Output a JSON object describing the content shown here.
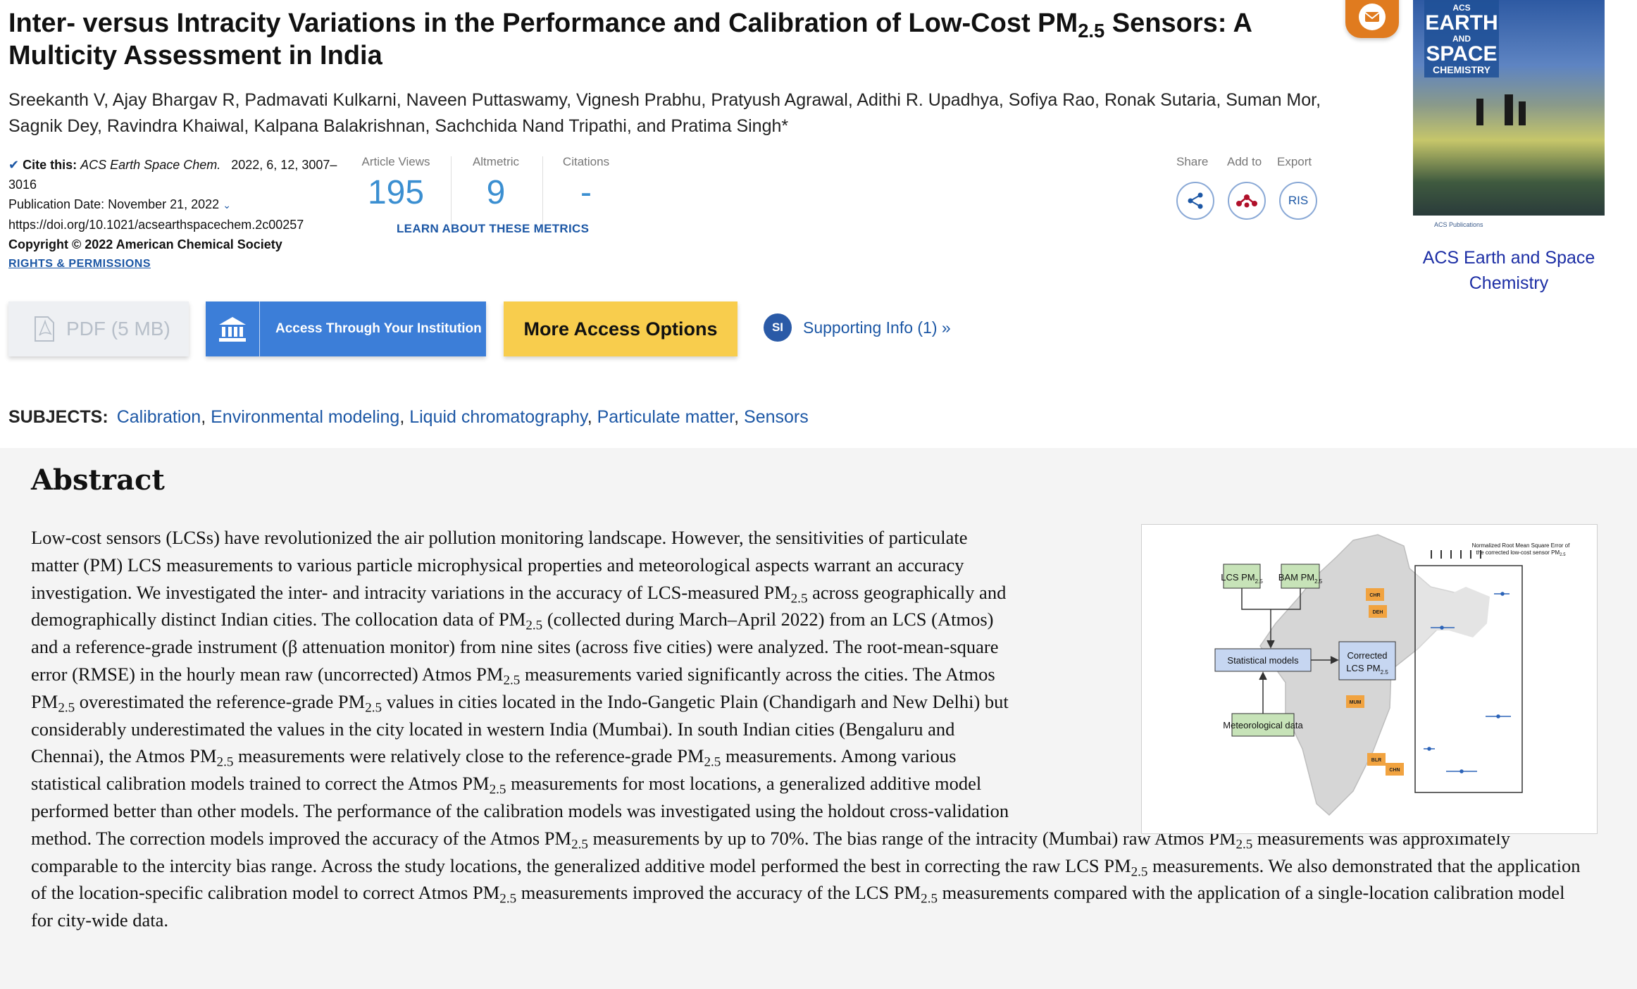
{
  "article": {
    "title_pre": "Inter- versus Intracity Variations in the Performance and Calibration of Low-Cost PM",
    "title_sub": "2.5",
    "title_post": " Sensors: A Multicity Assessment in India",
    "authors": "Sreekanth V, Ajay Bhargav R, Padmavati Kulkarni, Naveen Puttaswamy, Vignesh Prabhu, Pratyush Agrawal, Adithi R. Upadhya, Sofiya Rao, Ronak Sutaria, Suman Mor, Sagnik Dey, Ravindra Khaiwal, Kalpana Balakrishnan, Sachchida Nand Tripathi, and Pratima Singh*"
  },
  "citation": {
    "label": "Cite this:",
    "journal": "ACS Earth Space Chem.",
    "ref": "2022, 6, 12, 3007–3016",
    "pub_date": "Publication Date: November 21, 2022",
    "doi": "https://doi.org/10.1021/acsearthspacechem.2c00257",
    "copyright": "Copyright © 2022 American Chemical Society",
    "rights": "RIGHTS & PERMISSIONS"
  },
  "metrics": {
    "views_label": "Article Views",
    "views": "195",
    "altmetric_label": "Altmetric",
    "altmetric": "9",
    "citations_label": "Citations",
    "citations": "-",
    "learn": "LEARN ABOUT THESE METRICS"
  },
  "actions": {
    "share": "Share",
    "add_to": "Add to",
    "export": "Export",
    "ris": "RIS"
  },
  "buttons": {
    "pdf": "PDF (5 MB)",
    "institution": "Access Through Your Institution",
    "more": "More Access Options",
    "si_badge": "SI",
    "supporting": "Supporting Info (1) »"
  },
  "subjects": {
    "label": "SUBJECTS:",
    "items": [
      "Calibration",
      "Environmental modeling",
      "Liquid chromatography",
      "Particulate matter",
      "Sensors"
    ]
  },
  "journal": {
    "cover_acs": "ACS",
    "cover_earth": "EARTH",
    "cover_and": "AND",
    "cover_space": "SPACE",
    "cover_chem": "CHEMISTRY",
    "cover_pub": "ACS Publications",
    "name": "ACS Earth and Space Chemistry"
  },
  "abstract": {
    "heading": "Abstract",
    "pm": "PM",
    "sub": "2.5",
    "s1": "Low-cost sensors (LCSs) have revolutionized the air pollution monitoring landscape. However, the sensitivities of particulate matter (PM) LCS measurements to various particle microphysical properties and meteorological aspects warrant an accuracy investigation. We investigated the inter- and intracity variations in the accuracy of LCS-measured ",
    "s2": " across geographically and demographically distinct Indian cities. The collocation data of ",
    "s3": " (collected during March–April 2022) from an LCS (Atmos) and a reference-grade instrument (β attenuation monitor) from nine sites (across five cities) were analyzed. The root-mean-square error (RMSE) in the hourly mean raw (uncorrected) Atmos ",
    "s4": " measurements varied significantly across the cities. The Atmos ",
    "s5": " overestimated the reference-grade ",
    "s6": " values in cities located in the Indo-Gangetic Plain (Chandigarh and New Delhi) but considerably underestimated the values in the city located in western India (Mumbai). In south Indian cities (Bengaluru and Chennai), the Atmos ",
    "s7": " measurements were relatively close to the reference-grade ",
    "s8": " measurements. Among various statistical calibration models trained to correct the Atmos ",
    "s9": " measurements for most locations, a generalized additive model performed better than other models. The performance of the calibration models was investigated using the holdout cross-validation method. The correction models improved the accuracy of the Atmos ",
    "s10": " measurements by up to 70%. The bias range of the intracity (Mumbai) raw Atmos ",
    "s11": " measurements was approximately comparable to the intercity bias range. Across the study locations, the generalized additive model performed the best in correcting the raw LCS ",
    "s12": " measurements. We also demonstrated that the application of the location-specific calibration model to correct Atmos ",
    "s13": " measurements improved the accuracy of the LCS ",
    "s14": " measurements compared with the application of a single-location calibration model for city-wide data."
  },
  "toc": {
    "lcs": "LCS PM",
    "bam": "BAM PM",
    "sub": "2.5",
    "stat": "Statistical models",
    "met": "Meteorological data",
    "corr1": "Corrected",
    "corr2": "LCS PM",
    "plot_title1": "Normalized Root Mean Square Error of",
    "plot_title2": "the corrected low-cost sensor PM",
    "cities": [
      "CHR",
      "DEH",
      "MUM",
      "BLR",
      "CHN"
    ]
  }
}
